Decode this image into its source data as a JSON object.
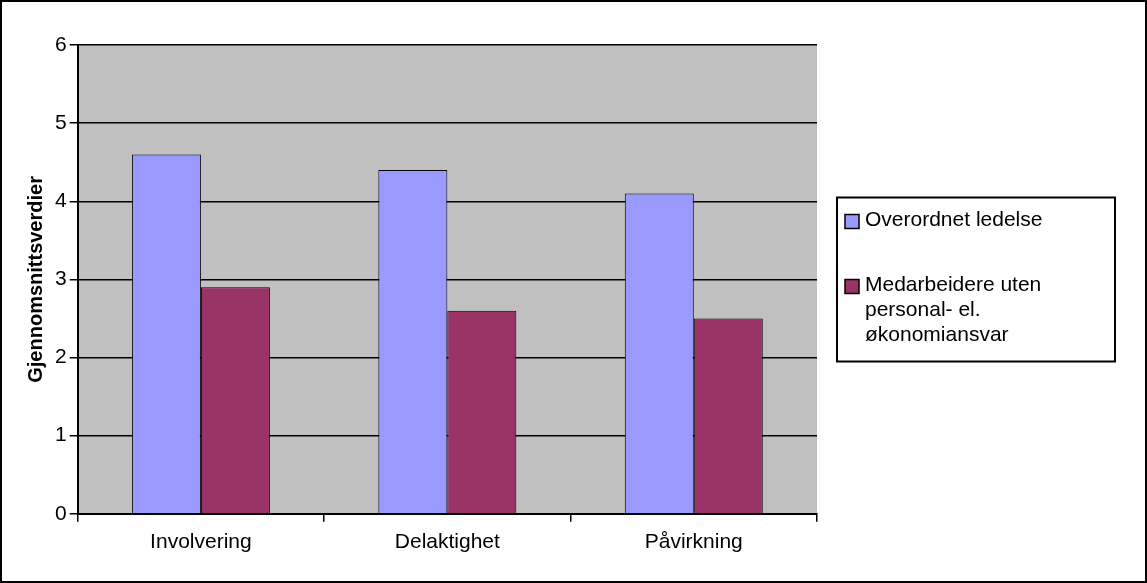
{
  "chart_data": {
    "type": "bar",
    "ylabel": "Gjennomsnittsverdier",
    "categories": [
      "Involvering",
      "Delaktighet",
      "Påvirkning"
    ],
    "series": [
      {
        "name": "Overordnet ledelse",
        "color": "#9999ff",
        "values": [
          4.6,
          4.4,
          4.1
        ]
      },
      {
        "name": "Medarbeidere uten personal- el. økonomiansvar",
        "color": "#993366",
        "values": [
          2.9,
          2.6,
          2.5
        ]
      }
    ],
    "ylim": [
      0,
      6
    ],
    "yticks": [
      0,
      1,
      2,
      3,
      4,
      5,
      6
    ],
    "grid": "y",
    "legend": "right"
  }
}
